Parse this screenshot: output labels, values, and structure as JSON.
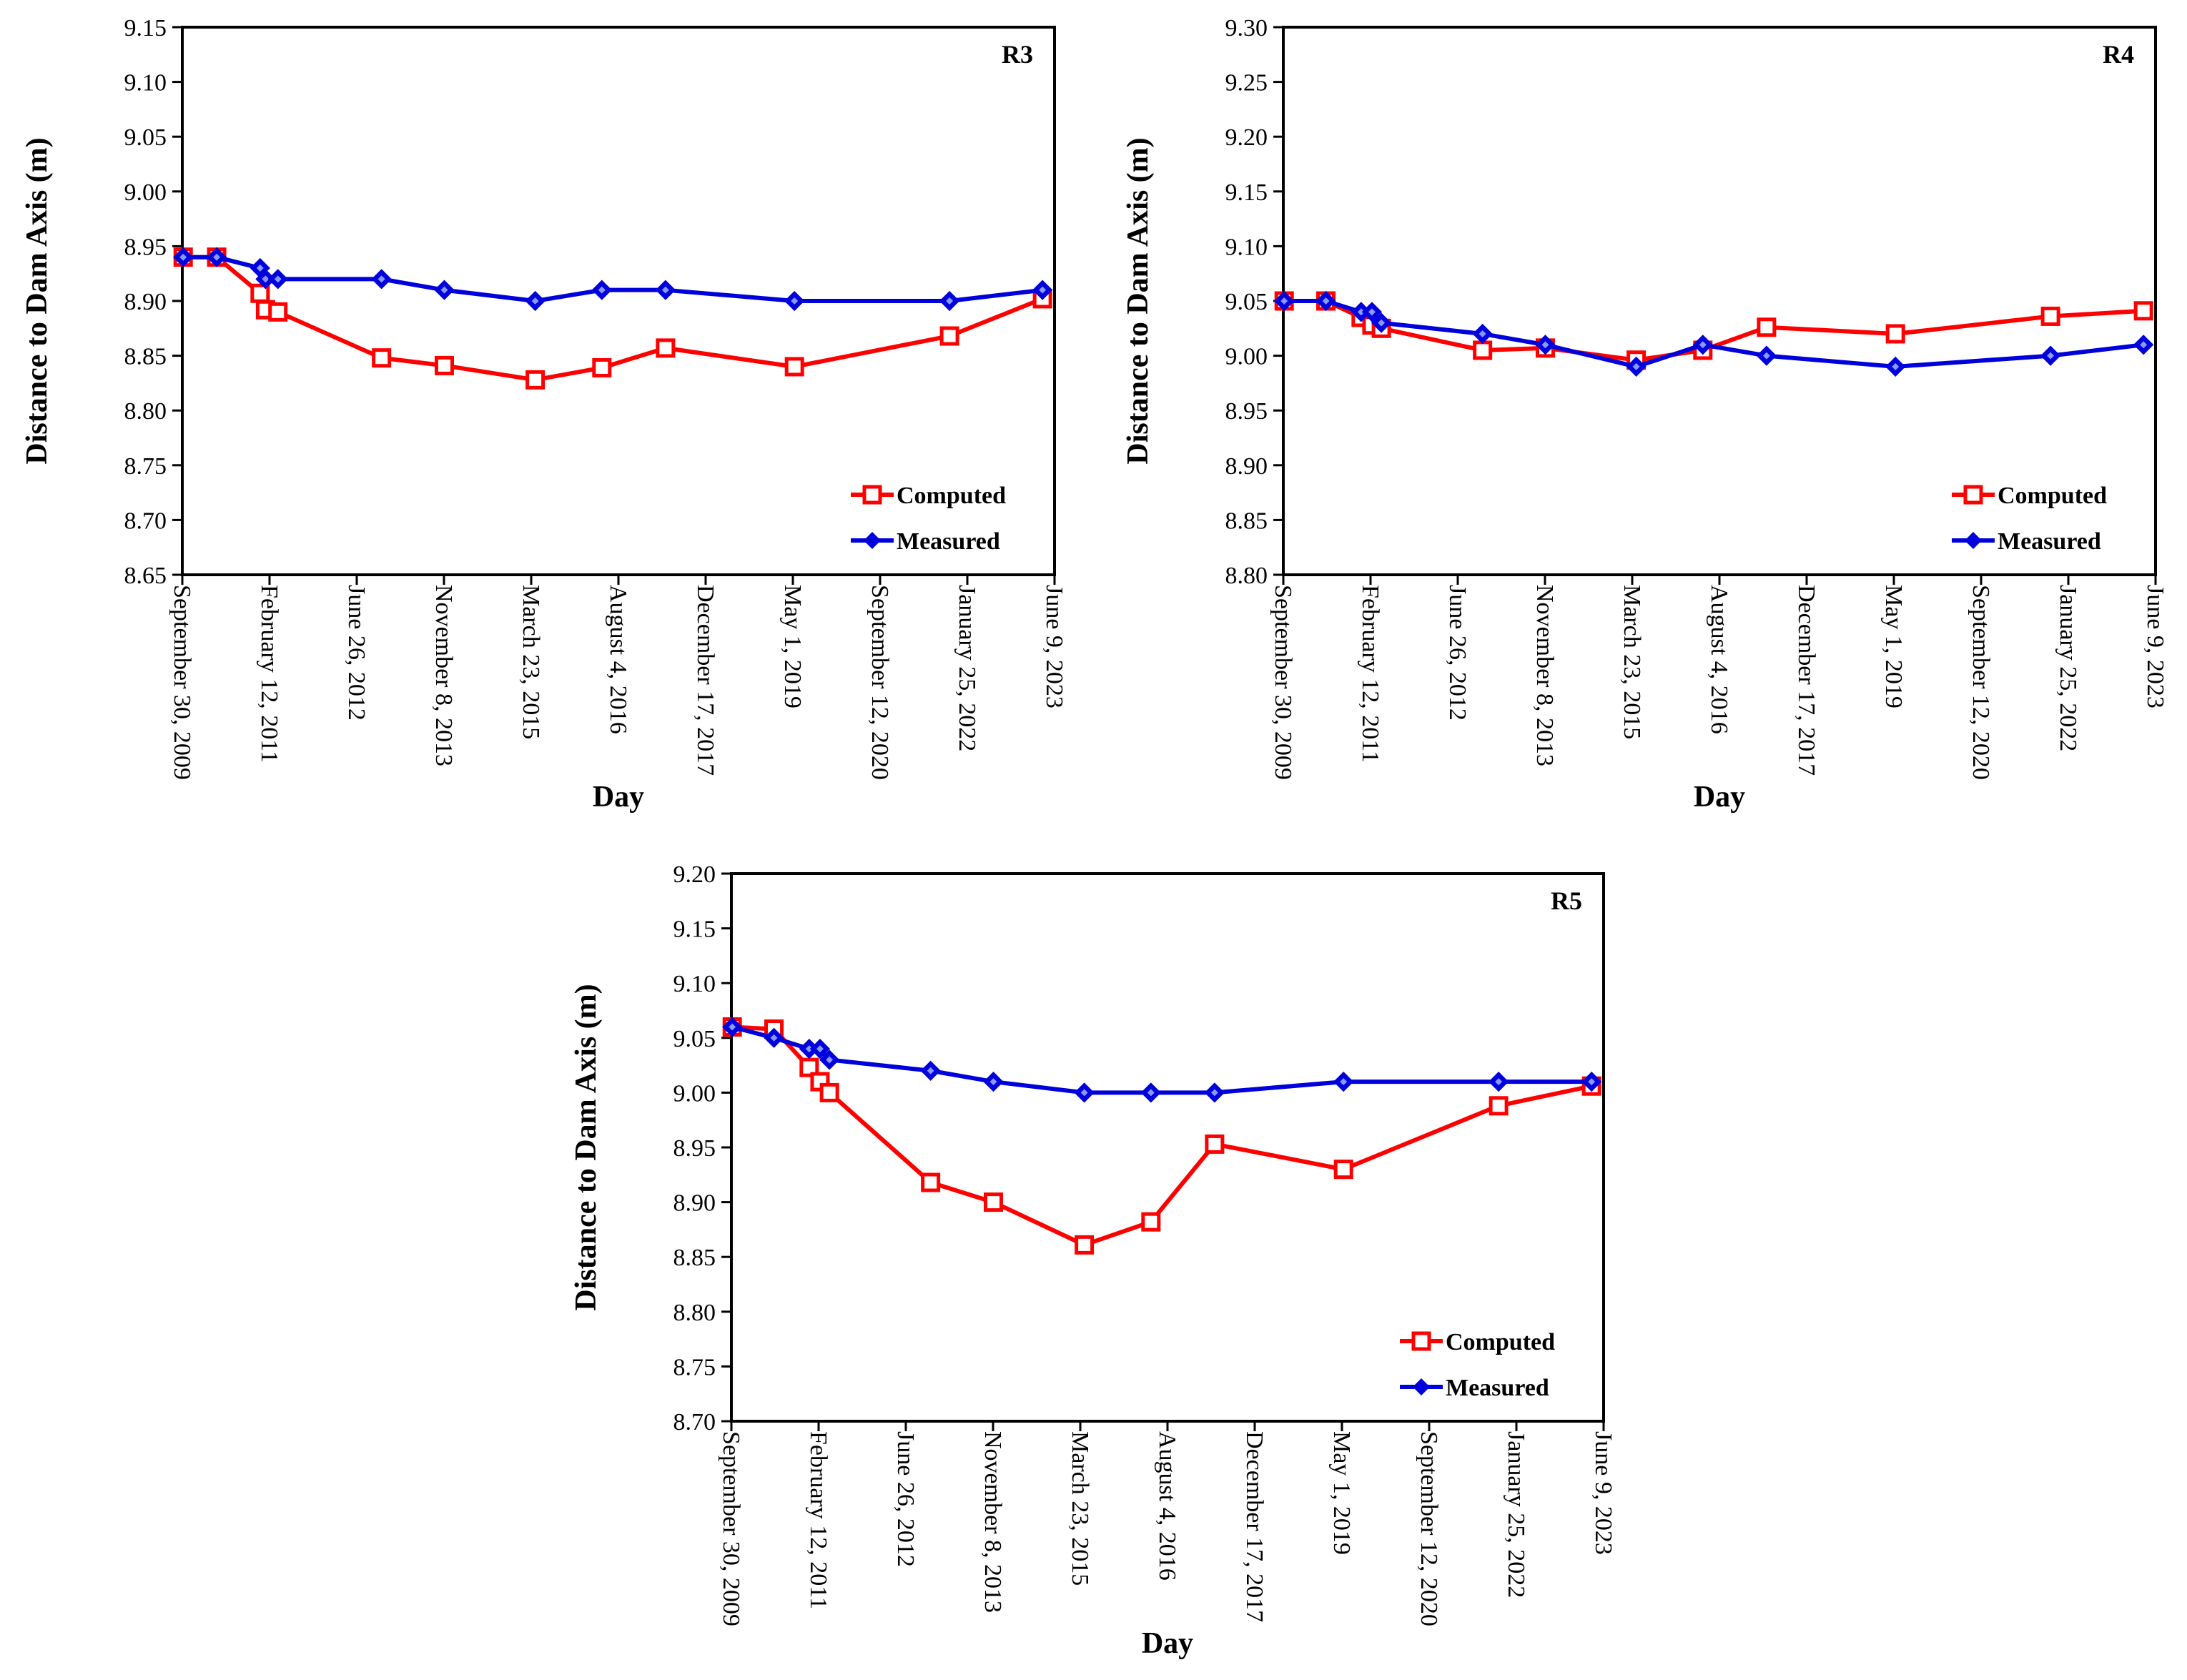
{
  "colors": {
    "computed": "#ff0000",
    "measured": "#0000dd",
    "axis": "#000000"
  },
  "chart_data": [
    {
      "type": "line",
      "panel_label": "R3",
      "xlabel": "Day",
      "ylabel": "Distance to Dam Axis (m)",
      "ylim": [
        8.65,
        9.15
      ],
      "yticks": [
        "8.65",
        "8.70",
        "8.75",
        "8.80",
        "8.85",
        "8.90",
        "8.95",
        "9.00",
        "9.05",
        "9.10",
        "9.15"
      ],
      "xlim": [
        "2009-09-30",
        "2023-06-09"
      ],
      "xticks": [
        "September 30, 2009",
        "February 12, 2011",
        "June 26, 2012",
        "November 8, 2013",
        "March 23, 2015",
        "August 4, 2016",
        "December 17, 2017",
        "May 1, 2019",
        "September 12, 2020",
        "January 25, 2022",
        "June 9, 2023"
      ],
      "legend": [
        "Computed",
        "Measured"
      ],
      "legend_position": "bottom-right",
      "series": [
        {
          "name": "Computed",
          "marker": "square",
          "x": [
            "2009-10-05",
            "2010-04-15",
            "2010-12-20",
            "2011-01-20",
            "2011-04-01",
            "2012-11-15",
            "2013-11-10",
            "2015-04-15",
            "2016-05-01",
            "2017-05-01",
            "2019-05-10",
            "2021-10-15",
            "2023-04-01"
          ],
          "y": [
            8.94,
            8.94,
            8.907,
            8.892,
            8.89,
            8.848,
            8.841,
            8.828,
            8.839,
            8.857,
            8.84,
            8.868,
            8.902
          ]
        },
        {
          "name": "Measured",
          "marker": "diamond",
          "x": [
            "2009-10-05",
            "2010-04-15",
            "2010-12-20",
            "2011-01-20",
            "2011-04-01",
            "2012-11-15",
            "2013-11-10",
            "2015-04-15",
            "2016-05-01",
            "2017-05-01",
            "2019-05-10",
            "2021-10-15",
            "2023-04-01"
          ],
          "y": [
            8.94,
            8.94,
            8.93,
            8.92,
            8.92,
            8.92,
            8.91,
            8.9,
            8.91,
            8.91,
            8.9,
            8.9,
            8.91
          ]
        }
      ]
    },
    {
      "type": "line",
      "panel_label": "R4",
      "xlabel": "Day",
      "ylabel": "Distance to Dam Axis (m)",
      "ylim": [
        8.8,
        9.3
      ],
      "yticks": [
        "8.80",
        "8.85",
        "8.90",
        "8.95",
        "9.00",
        "9.05",
        "9.10",
        "9.15",
        "9.20",
        "9.25",
        "9.30"
      ],
      "xlim": [
        "2009-09-30",
        "2023-06-09"
      ],
      "xticks": [
        "September 30, 2009",
        "February 12, 2011",
        "June 26, 2012",
        "November 8, 2013",
        "March 23, 2015",
        "August 4, 2016",
        "December 17, 2017",
        "May 1, 2019",
        "September 12, 2020",
        "January 25, 2022",
        "June 9, 2023"
      ],
      "legend": [
        "Computed",
        "Measured"
      ],
      "legend_position": "bottom-right",
      "series": [
        {
          "name": "Computed",
          "marker": "square",
          "x": [
            "2009-10-05",
            "2010-06-01",
            "2010-12-20",
            "2011-02-20",
            "2011-04-15",
            "2012-11-15",
            "2013-11-10",
            "2015-04-15",
            "2016-05-01",
            "2017-05-01",
            "2019-05-10",
            "2021-10-15",
            "2023-04-01"
          ],
          "y": [
            9.05,
            9.05,
            9.035,
            9.028,
            9.025,
            9.005,
            9.007,
            8.996,
            9.005,
            9.026,
            9.02,
            9.036,
            9.041
          ]
        },
        {
          "name": "Measured",
          "marker": "diamond",
          "x": [
            "2009-10-05",
            "2010-06-01",
            "2010-12-20",
            "2011-02-20",
            "2011-04-15",
            "2012-11-15",
            "2013-11-10",
            "2015-04-15",
            "2016-05-01",
            "2017-05-01",
            "2019-05-10",
            "2021-10-15",
            "2023-04-01"
          ],
          "y": [
            9.05,
            9.05,
            9.04,
            9.04,
            9.03,
            9.02,
            9.01,
            8.99,
            9.01,
            9.0,
            8.99,
            9.0,
            9.01
          ]
        }
      ]
    },
    {
      "type": "line",
      "panel_label": "R5",
      "xlabel": "Day",
      "ylabel": "Distance to Dam Axis (m)",
      "ylim": [
        8.7,
        9.2
      ],
      "yticks": [
        "8.70",
        "8.75",
        "8.80",
        "8.85",
        "8.90",
        "8.95",
        "9.00",
        "9.05",
        "9.10",
        "9.15",
        "9.20"
      ],
      "xlim": [
        "2009-09-30",
        "2023-06-09"
      ],
      "xticks": [
        "September 30, 2009",
        "February 12, 2011",
        "June 26, 2012",
        "November 8, 2013",
        "March 23, 2015",
        "August 4, 2016",
        "December 17, 2017",
        "May 1, 2019",
        "September 12, 2020",
        "January 25, 2022",
        "June 9, 2023"
      ],
      "legend": [
        "Computed",
        "Measured"
      ],
      "legend_position": "bottom-right",
      "series": [
        {
          "name": "Computed",
          "marker": "square",
          "x": [
            "2009-10-05",
            "2010-06-01",
            "2010-12-20",
            "2011-02-20",
            "2011-04-15",
            "2012-11-15",
            "2013-11-10",
            "2015-04-15",
            "2016-05-01",
            "2017-05-01",
            "2019-05-10",
            "2021-10-15",
            "2023-04-01"
          ],
          "y": [
            9.06,
            9.058,
            9.023,
            9.01,
            9.0,
            8.918,
            8.9,
            8.861,
            8.882,
            8.953,
            8.93,
            8.988,
            9.006
          ]
        },
        {
          "name": "Measured",
          "marker": "diamond",
          "x": [
            "2009-10-05",
            "2010-06-01",
            "2010-12-20",
            "2011-02-20",
            "2011-04-15",
            "2012-11-15",
            "2013-11-10",
            "2015-04-15",
            "2016-05-01",
            "2017-05-01",
            "2019-05-10",
            "2021-10-15",
            "2023-04-01"
          ],
          "y": [
            9.06,
            9.05,
            9.04,
            9.04,
            9.03,
            9.02,
            9.01,
            9.0,
            9.0,
            9.0,
            9.01,
            9.01,
            9.01
          ]
        }
      ]
    }
  ]
}
